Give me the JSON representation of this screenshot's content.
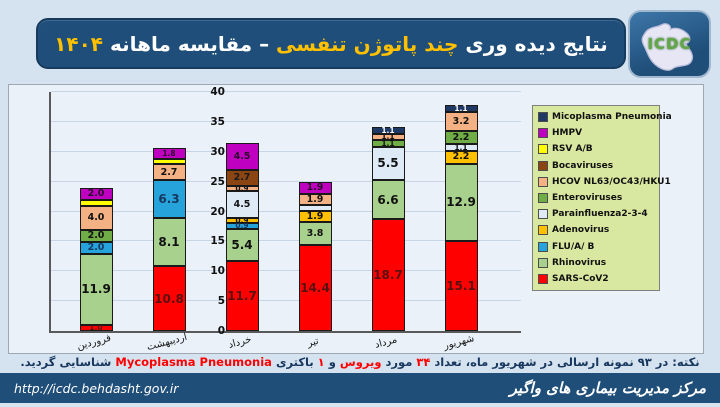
{
  "header": {
    "title_parts": [
      {
        "text": "نتایج دیده وری ",
        "color": "#FFFFFF"
      },
      {
        "text": "چند پاتوژن تنفسی ",
        "color": "#FFC000"
      },
      {
        "text": "– مقایسه ماهانه ",
        "color": "#FFFFFF"
      },
      {
        "text": "۱۴۰۴",
        "color": "#FFC000"
      }
    ],
    "logo_text": "ICDC"
  },
  "chart_data": {
    "type": "bar",
    "stacked": true,
    "title": "",
    "xlabel": "",
    "ylabel": "",
    "ylim": [
      0,
      40
    ],
    "yticks": [
      0,
      5,
      10,
      15,
      20,
      25,
      30,
      35,
      40
    ],
    "grid": true,
    "legend_position": "right-inside",
    "categories": [
      "فروردین",
      "اردیبهشت",
      "خرداد",
      "تیر",
      "مرداد",
      "شهریور"
    ],
    "series": [
      {
        "name": "SARS-CoV2",
        "color": "#FF0000",
        "label_color": "#5B1010",
        "values": [
          1.0,
          10.8,
          11.7,
          14.4,
          18.7,
          15.1
        ],
        "labels": [
          "1.0",
          "10.8",
          "11.7",
          "14.4",
          "18.7",
          "15.1"
        ]
      },
      {
        "name": "Rhinovirus",
        "color": "#A9D18E",
        "label_color": "#111111",
        "values": [
          11.9,
          8.1,
          5.4,
          3.8,
          6.6,
          12.9
        ],
        "labels": [
          "11.9",
          "8.1",
          "5.4",
          "3.8",
          "6.6",
          "12.9"
        ]
      },
      {
        "name": "FLU/A/ B",
        "color": "#27A3DB",
        "label_color": "#17375E",
        "values": [
          2.0,
          6.3,
          0.9,
          0,
          0,
          0
        ],
        "labels": [
          "2.0",
          "6.3",
          "0.9",
          "",
          "",
          ""
        ]
      },
      {
        "name": "Adenovirus",
        "color": "#FFC000",
        "label_color": "#111111",
        "values": [
          0,
          0,
          0.9,
          1.9,
          0,
          2.2
        ],
        "labels": [
          "",
          "",
          "0.9",
          "1.9",
          "",
          "2.2"
        ]
      },
      {
        "name": "Parainfluenza2-3-4",
        "color": "#DEEBF7",
        "label_color": "#111111",
        "values": [
          0,
          0,
          4.5,
          1.0,
          5.5,
          1.1
        ],
        "labels": [
          "",
          "",
          "4.5",
          "",
          "5.5",
          "1.1"
        ]
      },
      {
        "name": "Enteroviruses",
        "color": "#70AD47",
        "label_color": "#111111",
        "values": [
          2.0,
          0,
          0,
          0,
          1.1,
          2.2
        ],
        "labels": [
          "2.0",
          "",
          "",
          "",
          "1.1",
          "2.2"
        ]
      },
      {
        "name": "HCOV NL63/OC43/HKU1",
        "color": "#F4B183",
        "label_color": "#111111",
        "values": [
          4.0,
          2.7,
          0.9,
          1.9,
          1.1,
          3.2
        ],
        "labels": [
          "4.0",
          "2.7",
          "0.9",
          "1.9",
          "1.1",
          "3.2"
        ]
      },
      {
        "name": "Bocaviruses",
        "color": "#8B4513",
        "label_color": "#1a1a1a",
        "values": [
          0,
          0,
          2.7,
          0,
          0,
          0
        ],
        "labels": [
          "",
          "",
          "2.7",
          "",
          "",
          ""
        ]
      },
      {
        "name": "RSV A/B",
        "color": "#FFFF00",
        "label_color": "#111111",
        "values": [
          1.0,
          0.9,
          0,
          0,
          0,
          0
        ],
        "labels": [
          "",
          "",
          "",
          "",
          "",
          ""
        ]
      },
      {
        "name": "HMPV",
        "color": "#C000C0",
        "label_color": "#2B0A2B",
        "values": [
          2.0,
          1.8,
          4.5,
          1.9,
          0,
          0
        ],
        "labels": [
          "2.0",
          "1.8",
          "4.5",
          "1.9",
          "",
          ""
        ]
      },
      {
        "name": "Micoplasma Pneumonia",
        "color": "#1F3864",
        "label_color": "#FFFFFF",
        "values": [
          0,
          0,
          0,
          0,
          1.1,
          1.1
        ],
        "labels": [
          "",
          "",
          "",
          "",
          "1.1",
          "1.1"
        ]
      }
    ]
  },
  "note": {
    "segments": [
      {
        "text": "نکته: در ۹۳ نمونه ارسالی در شهریور ماه، تعداد ",
        "color": "#17375E"
      },
      {
        "text": "۳۴",
        "color": "#FF0000"
      },
      {
        "text": " مورد ",
        "color": "#17375E"
      },
      {
        "text": "ویروس",
        "color": "#FF0000"
      },
      {
        "text": " و ",
        "color": "#17375E"
      },
      {
        "text": "۱",
        "color": "#FF0000"
      },
      {
        "text": " باکتری ",
        "color": "#17375E"
      },
      {
        "text": "Mycoplasma Pneumonia",
        "color": "#FF0000"
      },
      {
        "text": " شناسایی گردید.",
        "color": "#17375E"
      }
    ]
  },
  "footer": {
    "url": "http://icdc.behdasht.gov.ir",
    "org": "مرکز مدیریت بیماری های واگیر"
  }
}
